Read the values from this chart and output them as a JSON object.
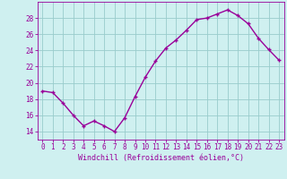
{
  "x": [
    0,
    1,
    2,
    3,
    4,
    5,
    6,
    7,
    8,
    9,
    10,
    11,
    12,
    13,
    14,
    15,
    16,
    17,
    18,
    19,
    20,
    21,
    22,
    23
  ],
  "y": [
    19.0,
    18.8,
    17.5,
    16.0,
    14.7,
    15.3,
    14.7,
    14.0,
    15.7,
    18.3,
    20.7,
    22.7,
    24.3,
    25.3,
    26.5,
    27.8,
    28.0,
    28.5,
    29.0,
    28.3,
    27.3,
    25.5,
    24.1,
    22.8
  ],
  "line_color": "#990099",
  "marker": "+",
  "marker_size": 3.5,
  "marker_lw": 1.0,
  "line_width": 1.0,
  "bg_color": "#cff0f0",
  "grid_color": "#99cccc",
  "xlabel": "Windchill (Refroidissement éolien,°C)",
  "xlabel_color": "#990099",
  "tick_color": "#990099",
  "xlim": [
    -0.5,
    23.5
  ],
  "ylim": [
    13.0,
    30.0
  ],
  "yticks": [
    14,
    16,
    18,
    20,
    22,
    24,
    26,
    28
  ],
  "xticks": [
    0,
    1,
    2,
    3,
    4,
    5,
    6,
    7,
    8,
    9,
    10,
    11,
    12,
    13,
    14,
    15,
    16,
    17,
    18,
    19,
    20,
    21,
    22,
    23
  ],
  "tick_fontsize": 5.5,
  "xlabel_fontsize": 6.0
}
